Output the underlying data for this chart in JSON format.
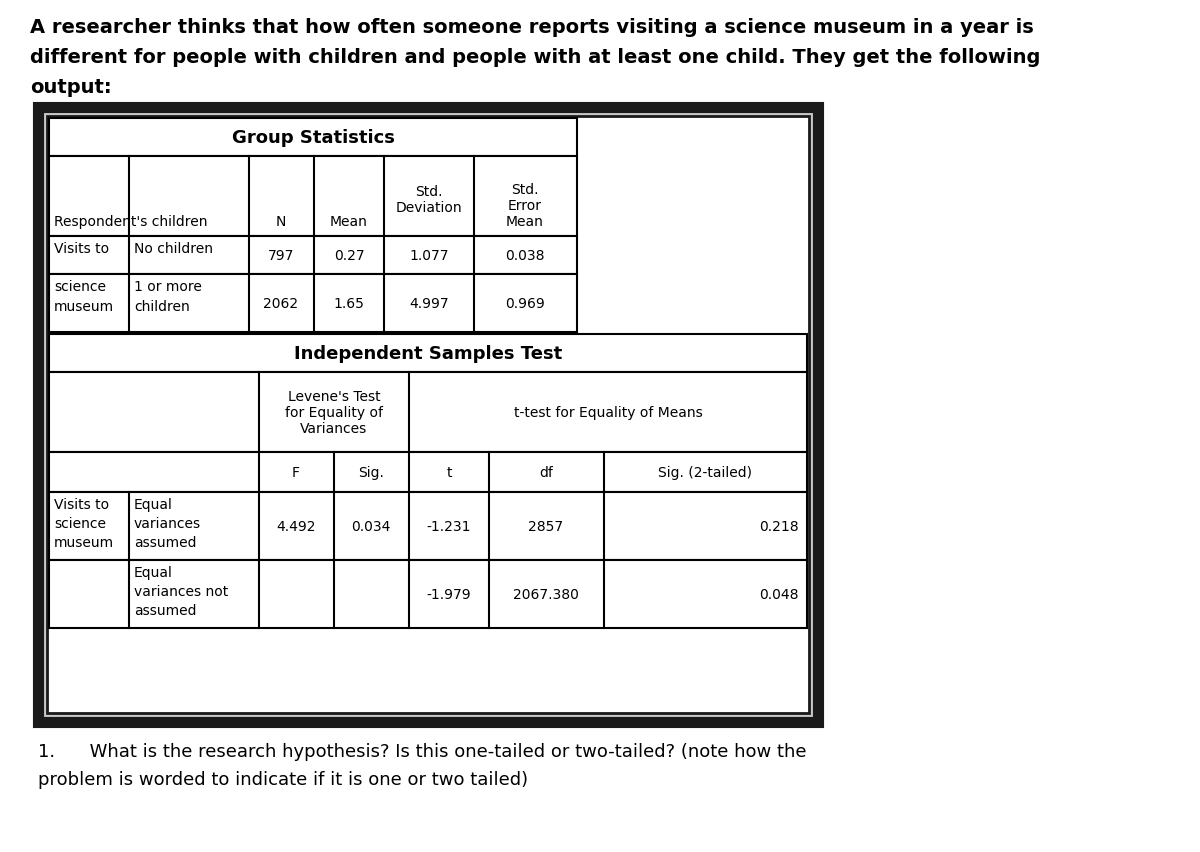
{
  "title_line1": "A researcher thinks that how often someone reports visiting a science museum in a year is",
  "title_line2": "different for people with children and people with at least one child. They get the following",
  "title_line3": "output:",
  "group_stats_title": "Group Statistics",
  "independent_test_title": "Independent Samples Test",
  "question_line1": "1.      What is the research hypothesis? Is this one-tailed or two-tailed? (note how the",
  "question_line2": "problem is worded to indicate if it is one or two tailed)",
  "bg_color": "#ffffff",
  "text_color": "#000000",
  "border_dark": "#1a1a1a",
  "line_color": "#000000"
}
